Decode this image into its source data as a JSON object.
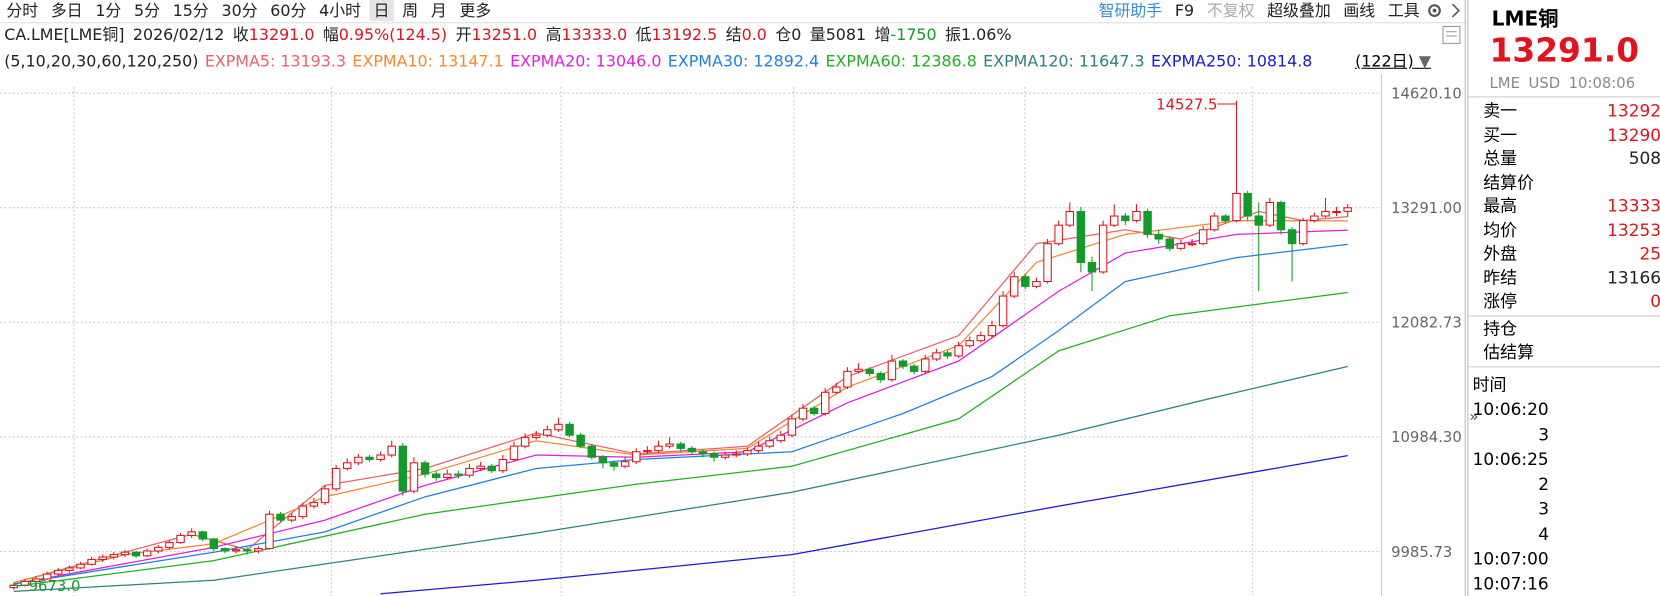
{
  "toolbar": {
    "left": [
      "分时",
      "多日",
      "1分",
      "5分",
      "15分",
      "30分",
      "60分",
      "4小时",
      "日",
      "周",
      "月",
      "更多"
    ],
    "selected": 8,
    "right": [
      "智研助手",
      "F9",
      "不复权",
      "超级叠加",
      "画线",
      "工具"
    ]
  },
  "info": {
    "symbol": "CA.LME[LME铜]",
    "date": "2026/02/12",
    "items": [
      {
        "label": "收",
        "value": "13291.0",
        "color": "#e0141e"
      },
      {
        "label": "幅",
        "value": "0.95%(124.5)",
        "color": "#e0141e"
      },
      {
        "label": "开",
        "value": "13251.0",
        "color": "#e0141e"
      },
      {
        "label": "高",
        "value": "13333.0",
        "color": "#e0141e"
      },
      {
        "label": "低",
        "value": "13192.5",
        "color": "#e0141e"
      },
      {
        "label": "结",
        "value": "0.0",
        "color": "#e0141e"
      },
      {
        "label": "仓",
        "value": "0",
        "color": "#222"
      },
      {
        "label": "量",
        "value": "5081",
        "color": "#222"
      },
      {
        "label": "增",
        "value": "-1750",
        "color": "#139a2a"
      },
      {
        "label": "振",
        "value": "1.06%",
        "color": "#222"
      }
    ]
  },
  "chart": {
    "type": "candlestick",
    "params": "(5,10,20,30,60,120,250)",
    "period": "(122日)",
    "log_y": true,
    "ylim": [
      9631,
      14698
    ],
    "xlim": [
      -1.24,
      123.05
    ],
    "yticks": [
      {
        "value": 14620.1,
        "label": "14620.10"
      },
      {
        "value": 13291,
        "label": "13291.00"
      },
      {
        "value": 12082.73,
        "label": "12082.73"
      },
      {
        "value": 10984.3,
        "label": "10984.30"
      },
      {
        "value": 9985.73,
        "label": "9985.73"
      }
    ],
    "high_label": "14527.5",
    "low_label": "9673.0",
    "up_color": "#e0141e",
    "down_color": "#139a2a",
    "candles": [
      [
        9690,
        9730,
        9673,
        9710
      ],
      [
        9710,
        9760,
        9700,
        9740
      ],
      [
        9740,
        9780,
        9720,
        9760
      ],
      [
        9760,
        9820,
        9750,
        9800
      ],
      [
        9800,
        9850,
        9790,
        9830
      ],
      [
        9830,
        9870,
        9810,
        9850
      ],
      [
        9850,
        9900,
        9840,
        9880
      ],
      [
        9880,
        9940,
        9870,
        9920
      ],
      [
        9920,
        9960,
        9900,
        9940
      ],
      [
        9940,
        9980,
        9920,
        9960
      ],
      [
        9960,
        10000,
        9940,
        9980
      ],
      [
        9980,
        9990,
        9930,
        9950
      ],
      [
        9950,
        10010,
        9940,
        9990
      ],
      [
        9990,
        10040,
        9970,
        10020
      ],
      [
        10020,
        10080,
        10000,
        10060
      ],
      [
        10060,
        10140,
        10050,
        10120
      ],
      [
        10120,
        10180,
        10100,
        10150
      ],
      [
        10150,
        10160,
        10070,
        10090
      ],
      [
        10090,
        10100,
        9990,
        10010
      ],
      [
        10010,
        10020,
        9970,
        9990
      ],
      [
        9990,
        10030,
        9970,
        10000
      ],
      [
        10000,
        10020,
        9960,
        9990
      ],
      [
        9990,
        10030,
        9970,
        10010
      ],
      [
        10010,
        10330,
        10000,
        10300
      ],
      [
        10300,
        10320,
        10230,
        10250
      ],
      [
        10250,
        10310,
        10230,
        10280
      ],
      [
        10280,
        10400,
        10260,
        10370
      ],
      [
        10370,
        10440,
        10350,
        10400
      ],
      [
        10400,
        10550,
        10380,
        10520
      ],
      [
        10520,
        10730,
        10500,
        10700
      ],
      [
        10700,
        10790,
        10680,
        10750
      ],
      [
        10750,
        10830,
        10730,
        10800
      ],
      [
        10800,
        10820,
        10760,
        10780
      ],
      [
        10780,
        10850,
        10760,
        10820
      ],
      [
        10820,
        10950,
        10800,
        10900
      ],
      [
        10900,
        10930,
        10460,
        10500
      ],
      [
        10500,
        10800,
        10480,
        10750
      ],
      [
        10750,
        10770,
        10620,
        10650
      ],
      [
        10650,
        10680,
        10590,
        10620
      ],
      [
        10620,
        10690,
        10600,
        10650
      ],
      [
        10650,
        10680,
        10610,
        10640
      ],
      [
        10640,
        10740,
        10620,
        10700
      ],
      [
        10700,
        10760,
        10680,
        10720
      ],
      [
        10720,
        10740,
        10660,
        10680
      ],
      [
        10680,
        10820,
        10660,
        10780
      ],
      [
        10780,
        10940,
        10760,
        10900
      ],
      [
        10900,
        11020,
        10880,
        10980
      ],
      [
        10980,
        11040,
        10960,
        11000
      ],
      [
        11000,
        11090,
        10980,
        11050
      ],
      [
        11050,
        11160,
        11030,
        11100
      ],
      [
        11100,
        11120,
        10980,
        11000
      ],
      [
        11000,
        11020,
        10880,
        10900
      ],
      [
        10900,
        10920,
        10780,
        10800
      ],
      [
        10800,
        10820,
        10700,
        10750
      ],
      [
        10750,
        10770,
        10680,
        10720
      ],
      [
        10720,
        10800,
        10700,
        10760
      ],
      [
        10760,
        10880,
        10740,
        10850
      ],
      [
        10850,
        10900,
        10830,
        10860
      ],
      [
        10860,
        10950,
        10840,
        10900
      ],
      [
        10900,
        10980,
        10880,
        10920
      ],
      [
        10920,
        10940,
        10850,
        10880
      ],
      [
        10880,
        10900,
        10820,
        10850
      ],
      [
        10850,
        10870,
        10800,
        10830
      ],
      [
        10830,
        10850,
        10760,
        10800
      ],
      [
        10800,
        10850,
        10780,
        10820
      ],
      [
        10820,
        10860,
        10800,
        10830
      ],
      [
        10830,
        10890,
        10810,
        10860
      ],
      [
        10860,
        10940,
        10840,
        10900
      ],
      [
        10900,
        10990,
        10880,
        10950
      ],
      [
        10950,
        11040,
        10930,
        11000
      ],
      [
        11000,
        11190,
        10980,
        11150
      ],
      [
        11150,
        11290,
        11130,
        11250
      ],
      [
        11250,
        11270,
        11180,
        11200
      ],
      [
        11200,
        11440,
        11180,
        11400
      ],
      [
        11400,
        11490,
        11380,
        11450
      ],
      [
        11450,
        11640,
        11430,
        11600
      ],
      [
        11600,
        11680,
        11580,
        11620
      ],
      [
        11620,
        11640,
        11550,
        11580
      ],
      [
        11580,
        11600,
        11490,
        11520
      ],
      [
        11520,
        11760,
        11500,
        11700
      ],
      [
        11700,
        11720,
        11620,
        11650
      ],
      [
        11650,
        11670,
        11570,
        11600
      ],
      [
        11600,
        11760,
        11580,
        11720
      ],
      [
        11720,
        11820,
        11700,
        11780
      ],
      [
        11780,
        11800,
        11720,
        11750
      ],
      [
        11750,
        11890,
        11730,
        11850
      ],
      [
        11850,
        11940,
        11830,
        11900
      ],
      [
        11900,
        11990,
        11880,
        11950
      ],
      [
        11950,
        12100,
        11930,
        12050
      ],
      [
        12050,
        12400,
        12030,
        12350
      ],
      [
        12350,
        12600,
        12330,
        12550
      ],
      [
        12550,
        12580,
        12420,
        12450
      ],
      [
        12450,
        12540,
        12430,
        12500
      ],
      [
        12500,
        12950,
        12480,
        12900
      ],
      [
        12900,
        13150,
        12880,
        13100
      ],
      [
        13100,
        13350,
        13080,
        13250
      ],
      [
        13250,
        13300,
        12600,
        12700
      ],
      [
        12700,
        12760,
        12400,
        12600
      ],
      [
        12600,
        13150,
        12580,
        13100
      ],
      [
        13100,
        13330,
        13080,
        13200
      ],
      [
        13200,
        13230,
        13100,
        13150
      ],
      [
        13150,
        13330,
        13130,
        13250
      ],
      [
        13250,
        13280,
        12960,
        13000
      ],
      [
        13000,
        13050,
        12900,
        12950
      ],
      [
        12950,
        12980,
        12820,
        12850
      ],
      [
        12850,
        12940,
        12830,
        12900
      ],
      [
        12900,
        12950,
        12870,
        12900
      ],
      [
        12900,
        13090,
        12880,
        13050
      ],
      [
        13050,
        13240,
        13030,
        13200
      ],
      [
        13200,
        13220,
        13120,
        13150
      ],
      [
        13150,
        14527.5,
        13130,
        13450
      ],
      [
        13450,
        13480,
        13150,
        13200
      ],
      [
        13200,
        13350,
        12400,
        13100
      ],
      [
        13100,
        13400,
        13080,
        13350
      ],
      [
        13350,
        13370,
        13000,
        13050
      ],
      [
        13050,
        13080,
        12500,
        12900
      ],
      [
        12900,
        13180,
        12880,
        13150
      ],
      [
        13150,
        13240,
        13130,
        13200
      ],
      [
        13200,
        13400,
        13180,
        13250
      ],
      [
        13250,
        13300,
        13200,
        13250
      ],
      [
        13251,
        13333,
        13192.5,
        13291
      ]
    ],
    "series": [
      {
        "name": "EXPMA5: 13193.3",
        "color": "#e8646a",
        "x": [
          0,
          10,
          16,
          21,
          28,
          37,
          47,
          56,
          66,
          75,
          85,
          92,
          100,
          105,
          112,
          116,
          120
        ],
        "values": [
          9730,
          9980,
          10130,
          10000,
          10550,
          10700,
          11020,
          10830,
          10900,
          11550,
          11950,
          12900,
          13050,
          12950,
          13250,
          13150,
          13193.3
        ]
      },
      {
        "name": "EXPMA10: 13147.1",
        "color": "#f08a30",
        "x": [
          0,
          10,
          18,
          28,
          37,
          47,
          56,
          66,
          75,
          85,
          92,
          100,
          110,
          120
        ],
        "values": [
          9730,
          9960,
          10050,
          10450,
          10650,
          10950,
          10820,
          10880,
          11450,
          11850,
          12700,
          13000,
          13150,
          13147.1
        ]
      },
      {
        "name": "EXPMA20: 13046.0",
        "color": "#e020e0",
        "x": [
          0,
          18,
          28,
          37,
          47,
          56,
          66,
          75,
          85,
          94,
          100,
          110,
          120
        ],
        "values": [
          9720,
          10020,
          10250,
          10550,
          10820,
          10800,
          10850,
          11300,
          11700,
          12400,
          12800,
          13000,
          13046
        ]
      },
      {
        "name": "EXPMA30: 12892.4",
        "color": "#2080e0",
        "x": [
          0,
          18,
          28,
          37,
          47,
          56,
          70,
          80,
          88,
          94,
          100,
          110,
          120
        ],
        "values": [
          9720,
          9980,
          10150,
          10450,
          10700,
          10780,
          10850,
          11200,
          11550,
          12000,
          12500,
          12750,
          12892.4
        ]
      },
      {
        "name": "EXPMA60: 12386.8",
        "color": "#22b022",
        "x": [
          0,
          18,
          37,
          56,
          70,
          85,
          94,
          104,
          120
        ],
        "values": [
          9700,
          9910,
          10300,
          10560,
          10720,
          11150,
          11800,
          12150,
          12386.8
        ]
      },
      {
        "name": "EXPMA120: 11647.3",
        "color": "#2f8080",
        "x": [
          0,
          18,
          47,
          70,
          94,
          108,
          120
        ],
        "values": [
          9660,
          9750,
          10140,
          10490,
          11000,
          11350,
          11647.3
        ]
      },
      {
        "name": "EXPMA250: 10814.8",
        "color": "#1a1ad0",
        "x": [
          33,
          47,
          70,
          94,
          120
        ],
        "values": [
          9640,
          9750,
          9960,
          10370,
          10814.8
        ]
      }
    ]
  },
  "side": {
    "title": "LME铜",
    "price": "13291.0",
    "sub": [
      "LME",
      "USD",
      "10:08:06"
    ],
    "rows": [
      {
        "label": "卖一",
        "value": "13292",
        "color": "#e0141e"
      },
      {
        "label": "买一",
        "value": "13290",
        "color": "#e0141e"
      },
      {
        "label": "总量",
        "value": "508",
        "color": "#222"
      },
      {
        "label": "结算价",
        "value": "",
        "color": "#222"
      },
      {
        "label": "最高",
        "value": "13333",
        "color": "#e0141e"
      },
      {
        "label": "均价",
        "value": "13253",
        "color": "#e0141e"
      },
      {
        "label": "外盘",
        "value": "25",
        "color": "#e0141e"
      },
      {
        "label": "昨结",
        "value": "13166",
        "color": "#222"
      },
      {
        "label": "涨停",
        "value": "0",
        "color": "#e0141e"
      }
    ],
    "extra": [
      "持仓",
      "估结算"
    ],
    "trades_header": "时间",
    "trades": [
      {
        "time": "10:06:20",
        "vol": ""
      },
      {
        "time": "",
        "vol": "3"
      },
      {
        "time": "10:06:25",
        "vol": ""
      },
      {
        "time": "",
        "vol": "2"
      },
      {
        "time": "",
        "vol": "3"
      },
      {
        "time": "",
        "vol": "4"
      },
      {
        "time": "10:07:00",
        "vol": ""
      },
      {
        "time": "10:07:16",
        "vol": ""
      }
    ]
  }
}
